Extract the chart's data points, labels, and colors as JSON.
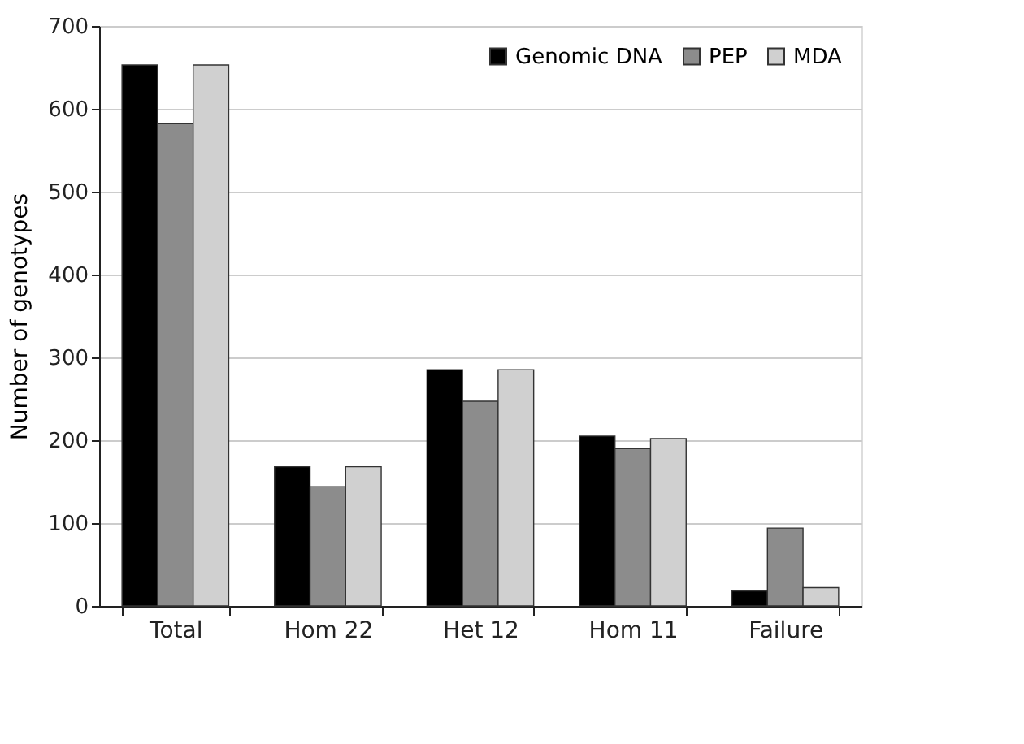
{
  "chart_data": {
    "type": "bar",
    "ylabel": "Number  of genotypes",
    "categories": [
      "Total",
      "Hom 22",
      "Het 12",
      "Hom 11",
      "Failure"
    ],
    "series": [
      {
        "name": "Genomic DNA",
        "color": "#000000",
        "values": [
          653,
          168,
          285,
          205,
          18
        ]
      },
      {
        "name": "PEP",
        "color": "#8c8c8c",
        "values": [
          582,
          144,
          247,
          190,
          94
        ]
      },
      {
        "name": "MDA",
        "color": "#d0d0d0",
        "values": [
          653,
          168,
          285,
          202,
          22
        ]
      }
    ],
    "ylim": [
      0,
      700
    ],
    "yticks": [
      0,
      100,
      200,
      300,
      400,
      500,
      600,
      700
    ],
    "grid": "y",
    "legend": "top right"
  }
}
